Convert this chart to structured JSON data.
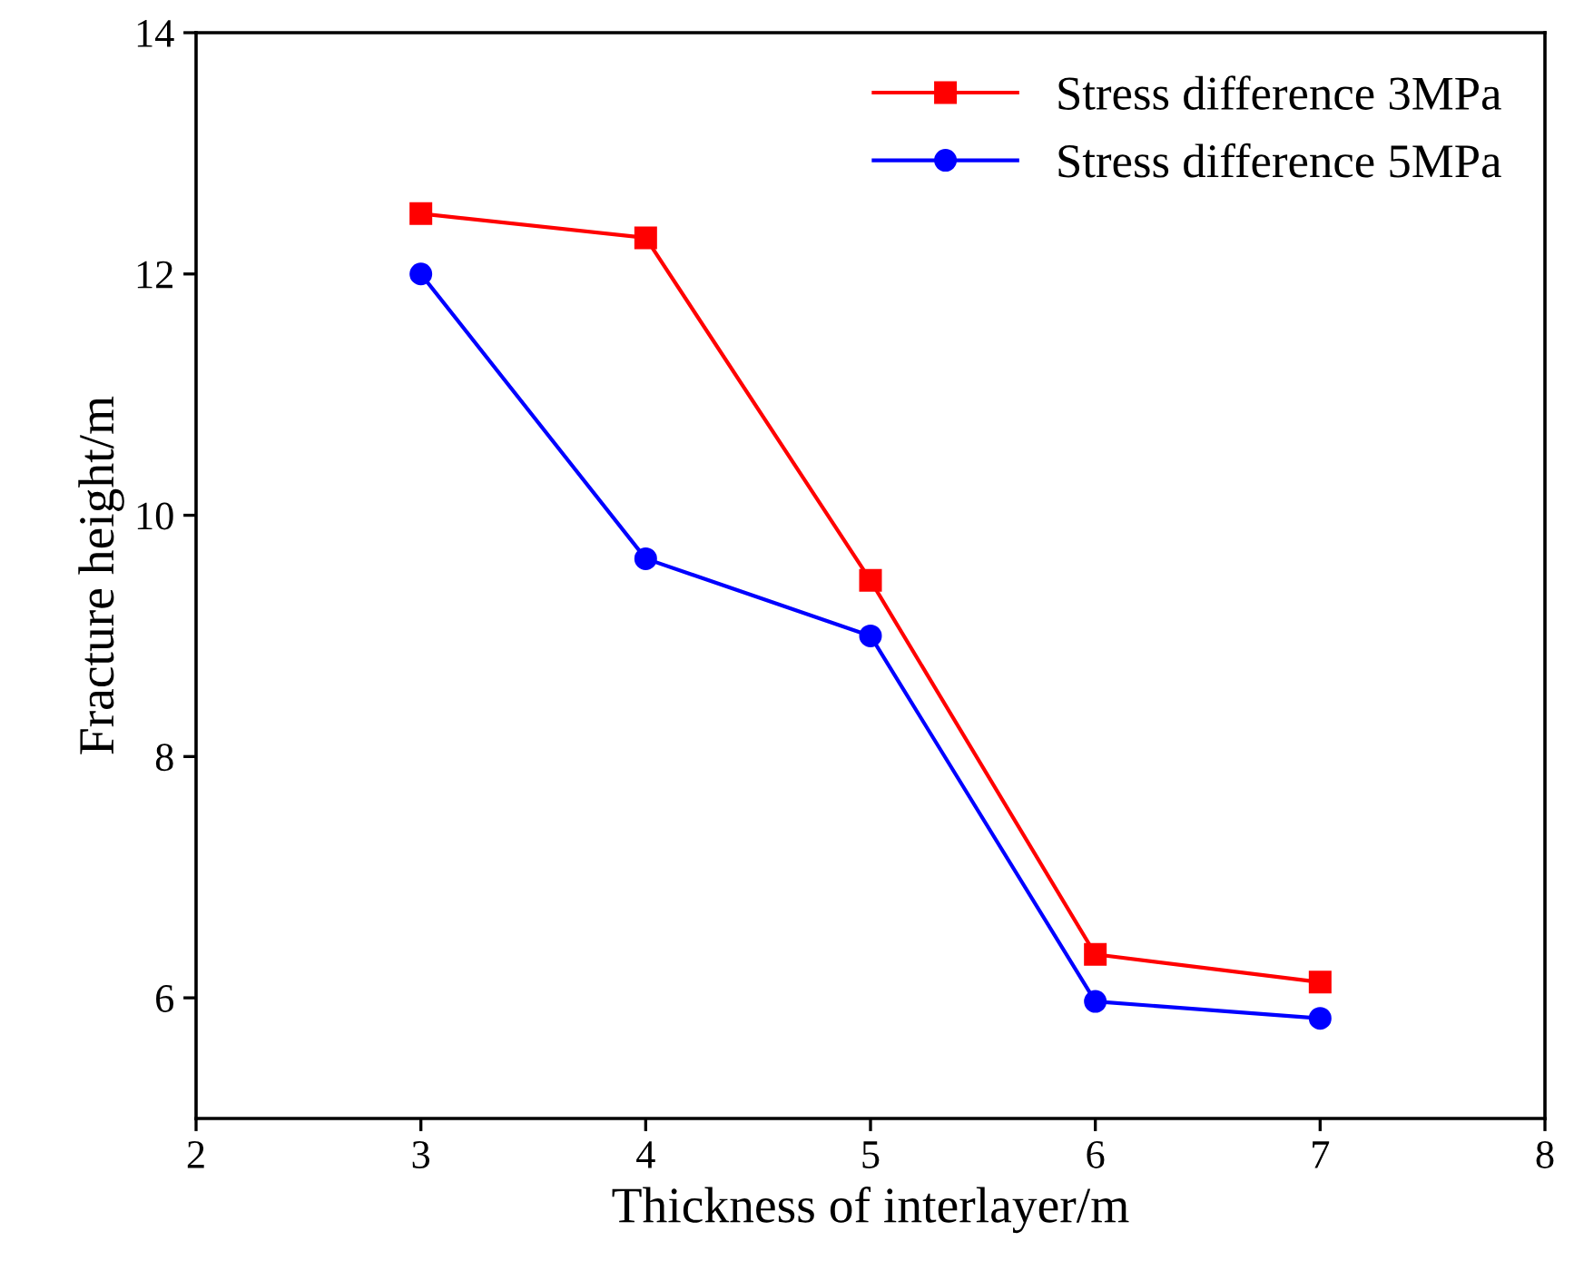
{
  "chart_data": {
    "type": "line",
    "xlabel": "Thickness of interlayer/m",
    "ylabel": "Fracture height/m",
    "x": [
      3,
      4,
      5,
      6,
      7
    ],
    "series": [
      {
        "name": "Stress difference 3MPa",
        "color": "#ff0000",
        "marker": "square",
        "values": [
          12.5,
          12.3,
          9.46,
          6.36,
          6.13
        ]
      },
      {
        "name": "Stress difference 5MPa",
        "color": "#0000ff",
        "marker": "circle",
        "values": [
          12.0,
          9.64,
          9.0,
          5.97,
          5.83
        ]
      }
    ],
    "xlim": [
      2,
      8
    ],
    "xticks": [
      2,
      3,
      4,
      5,
      6,
      7,
      8
    ],
    "ylim": [
      5,
      14
    ],
    "yticks": [
      6,
      8,
      10,
      12,
      14
    ],
    "grid": false,
    "legend": "top right",
    "line_style": "solid"
  }
}
